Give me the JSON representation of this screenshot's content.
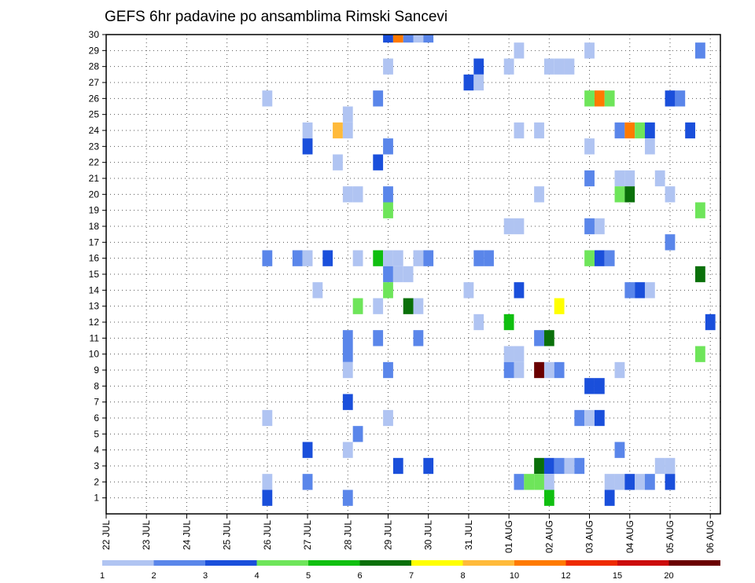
{
  "chart_data": {
    "type": "heatmap",
    "title": "GEFS 6hr padavine po ansamblima Rimski Sancevi",
    "y_ticks": [
      "1",
      "2",
      "3",
      "4",
      "5",
      "6",
      "7",
      "8",
      "9",
      "10",
      "11",
      "12",
      "13",
      "14",
      "15",
      "16",
      "17",
      "18",
      "19",
      "20",
      "21",
      "22",
      "23",
      "24",
      "25",
      "26",
      "27",
      "28",
      "29",
      "30"
    ],
    "x_ticks": [
      "22 JUL",
      "23 JUL",
      "24 JUL",
      "25 JUL",
      "26 JUL",
      "27 JUL",
      "28 JUL",
      "29 JUL",
      "30 JUL",
      "31 JUL",
      "01 AUG",
      "02 AUG",
      "03 AUG",
      "04 AUG",
      "05 AUG",
      "06 AUG"
    ],
    "x_steps_per_tick": 4,
    "ylim": [
      0,
      30
    ],
    "grid": true,
    "legend_levels": [
      "1",
      "2",
      "3",
      "4",
      "5",
      "6",
      "7",
      "8",
      "10",
      "12",
      "15",
      "20"
    ],
    "legend_colors": [
      "#b0c4f2",
      "#5a86ea",
      "#1a4fdb",
      "#6ee55a",
      "#10bf10",
      "#0a700a",
      "#ffff00",
      "#ffba3a",
      "#ff7a00",
      "#ee2a00",
      "#cc0c0c",
      "#6a0000"
    ],
    "cells": [
      {
        "x": "29 JUL 00",
        "member": 30,
        "level": 3
      },
      {
        "x": "29 JUL 06",
        "member": 30,
        "level": 10
      },
      {
        "x": "29 JUL 12",
        "member": 30,
        "level": 2
      },
      {
        "x": "29 JUL 18",
        "member": 30,
        "level": 1
      },
      {
        "x": "30 JUL 00",
        "member": 30,
        "level": 2
      },
      {
        "x": "01 AUG 06",
        "member": 29,
        "level": 1
      },
      {
        "x": "03 AUG 00",
        "member": 29,
        "level": 1
      },
      {
        "x": "05 AUG 18",
        "member": 29,
        "level": 2
      },
      {
        "x": "29 JUL 00",
        "member": 28,
        "level": 1
      },
      {
        "x": "31 JUL 06",
        "member": 28,
        "level": 3
      },
      {
        "x": "01 AUG 00",
        "member": 28,
        "level": 1
      },
      {
        "x": "02 AUG 00",
        "member": 28,
        "level": 1
      },
      {
        "x": "02 AUG 06",
        "member": 28,
        "level": 1
      },
      {
        "x": "02 AUG 12",
        "member": 28,
        "level": 1
      },
      {
        "x": "31 JUL 00",
        "member": 27,
        "level": 3
      },
      {
        "x": "31 JUL 06",
        "member": 27,
        "level": 1
      },
      {
        "x": "26 JUL 00",
        "member": 26,
        "level": 1
      },
      {
        "x": "28 JUL 18",
        "member": 26,
        "level": 2
      },
      {
        "x": "03 AUG 00",
        "member": 26,
        "level": 4
      },
      {
        "x": "03 AUG 06",
        "member": 26,
        "level": 10
      },
      {
        "x": "03 AUG 12",
        "member": 26,
        "level": 4
      },
      {
        "x": "05 AUG 00",
        "member": 26,
        "level": 3
      },
      {
        "x": "05 AUG 06",
        "member": 26,
        "level": 2
      },
      {
        "x": "28 JUL 00",
        "member": 25,
        "level": 1
      },
      {
        "x": "27 JUL 00",
        "member": 24,
        "level": 1
      },
      {
        "x": "27 JUL 18",
        "member": 24,
        "level": 8
      },
      {
        "x": "28 JUL 00",
        "member": 24,
        "level": 1
      },
      {
        "x": "01 AUG 06",
        "member": 24,
        "level": 1
      },
      {
        "x": "01 AUG 18",
        "member": 24,
        "level": 1
      },
      {
        "x": "03 AUG 18",
        "member": 24,
        "level": 2
      },
      {
        "x": "04 AUG 00",
        "member": 24,
        "level": 10
      },
      {
        "x": "04 AUG 06",
        "member": 24,
        "level": 4
      },
      {
        "x": "04 AUG 12",
        "member": 24,
        "level": 3
      },
      {
        "x": "05 AUG 12",
        "member": 24,
        "level": 3
      },
      {
        "x": "27 JUL 00",
        "member": 23,
        "level": 3
      },
      {
        "x": "29 JUL 00",
        "member": 23,
        "level": 2
      },
      {
        "x": "03 AUG 00",
        "member": 23,
        "level": 1
      },
      {
        "x": "04 AUG 12",
        "member": 23,
        "level": 1
      },
      {
        "x": "27 JUL 18",
        "member": 22,
        "level": 1
      },
      {
        "x": "28 JUL 18",
        "member": 22,
        "level": 3
      },
      {
        "x": "03 AUG 00",
        "member": 21,
        "level": 2
      },
      {
        "x": "03 AUG 18",
        "member": 21,
        "level": 1
      },
      {
        "x": "04 AUG 00",
        "member": 21,
        "level": 1
      },
      {
        "x": "04 AUG 18",
        "member": 21,
        "level": 1
      },
      {
        "x": "28 JUL 00",
        "member": 20,
        "level": 1
      },
      {
        "x": "28 JUL 06",
        "member": 20,
        "level": 1
      },
      {
        "x": "29 JUL 00",
        "member": 20,
        "level": 2
      },
      {
        "x": "01 AUG 18",
        "member": 20,
        "level": 1
      },
      {
        "x": "03 AUG 18",
        "member": 20,
        "level": 4
      },
      {
        "x": "04 AUG 00",
        "member": 20,
        "level": 6
      },
      {
        "x": "05 AUG 00",
        "member": 20,
        "level": 1
      },
      {
        "x": "29 JUL 00",
        "member": 19,
        "level": 4
      },
      {
        "x": "05 AUG 18",
        "member": 19,
        "level": 4
      },
      {
        "x": "01 AUG 00",
        "member": 18,
        "level": 1
      },
      {
        "x": "01 AUG 06",
        "member": 18,
        "level": 1
      },
      {
        "x": "03 AUG 00",
        "member": 18,
        "level": 2
      },
      {
        "x": "03 AUG 06",
        "member": 18,
        "level": 1
      },
      {
        "x": "05 AUG 00",
        "member": 17,
        "level": 2
      },
      {
        "x": "26 JUL 00",
        "member": 16,
        "level": 2
      },
      {
        "x": "26 JUL 18",
        "member": 16,
        "level": 2
      },
      {
        "x": "27 JUL 00",
        "member": 16,
        "level": 1
      },
      {
        "x": "27 JUL 12",
        "member": 16,
        "level": 3
      },
      {
        "x": "28 JUL 06",
        "member": 16,
        "level": 1
      },
      {
        "x": "28 JUL 18",
        "member": 16,
        "level": 5
      },
      {
        "x": "29 JUL 00",
        "member": 16,
        "level": 1
      },
      {
        "x": "29 JUL 06",
        "member": 16,
        "level": 1
      },
      {
        "x": "29 JUL 18",
        "member": 16,
        "level": 1
      },
      {
        "x": "30 JUL 00",
        "member": 16,
        "level": 2
      },
      {
        "x": "31 JUL 06",
        "member": 16,
        "level": 2
      },
      {
        "x": "31 JUL 12",
        "member": 16,
        "level": 2
      },
      {
        "x": "03 AUG 00",
        "member": 16,
        "level": 4
      },
      {
        "x": "03 AUG 06",
        "member": 16,
        "level": 3
      },
      {
        "x": "03 AUG 12",
        "member": 16,
        "level": 2
      },
      {
        "x": "29 JUL 00",
        "member": 15,
        "level": 2
      },
      {
        "x": "29 JUL 06",
        "member": 15,
        "level": 1
      },
      {
        "x": "29 JUL 12",
        "member": 15,
        "level": 1
      },
      {
        "x": "05 AUG 18",
        "member": 15,
        "level": 6
      },
      {
        "x": "27 JUL 06",
        "member": 14,
        "level": 1
      },
      {
        "x": "29 JUL 00",
        "member": 14,
        "level": 4
      },
      {
        "x": "31 JUL 00",
        "member": 14,
        "level": 1
      },
      {
        "x": "01 AUG 06",
        "member": 14,
        "level": 3
      },
      {
        "x": "04 AUG 00",
        "member": 14,
        "level": 2
      },
      {
        "x": "04 AUG 06",
        "member": 14,
        "level": 3
      },
      {
        "x": "04 AUG 12",
        "member": 14,
        "level": 1
      },
      {
        "x": "28 JUL 06",
        "member": 13,
        "level": 4
      },
      {
        "x": "28 JUL 18",
        "member": 13,
        "level": 1
      },
      {
        "x": "29 JUL 12",
        "member": 13,
        "level": 6
      },
      {
        "x": "29 JUL 18",
        "member": 13,
        "level": 1
      },
      {
        "x": "02 AUG 06",
        "member": 13,
        "level": 7
      },
      {
        "x": "31 JUL 06",
        "member": 12,
        "level": 1
      },
      {
        "x": "01 AUG 00",
        "member": 12,
        "level": 5
      },
      {
        "x": "06 AUG 00",
        "member": 12,
        "level": 3
      },
      {
        "x": "28 JUL 00",
        "member": 11,
        "level": 2
      },
      {
        "x": "28 JUL 18",
        "member": 11,
        "level": 2
      },
      {
        "x": "29 JUL 18",
        "member": 11,
        "level": 2
      },
      {
        "x": "01 AUG 18",
        "member": 11,
        "level": 2
      },
      {
        "x": "02 AUG 00",
        "member": 11,
        "level": 6
      },
      {
        "x": "28 JUL 00",
        "member": 10,
        "level": 2
      },
      {
        "x": "01 AUG 00",
        "member": 10,
        "level": 1
      },
      {
        "x": "01 AUG 06",
        "member": 10,
        "level": 1
      },
      {
        "x": "05 AUG 18",
        "member": 10,
        "level": 4
      },
      {
        "x": "28 JUL 00",
        "member": 9,
        "level": 1
      },
      {
        "x": "29 JUL 00",
        "member": 9,
        "level": 2
      },
      {
        "x": "01 AUG 00",
        "member": 9,
        "level": 2
      },
      {
        "x": "01 AUG 06",
        "member": 9,
        "level": 1
      },
      {
        "x": "01 AUG 18",
        "member": 9,
        "level": 20
      },
      {
        "x": "02 AUG 00",
        "member": 9,
        "level": 1
      },
      {
        "x": "02 AUG 06",
        "member": 9,
        "level": 2
      },
      {
        "x": "03 AUG 18",
        "member": 9,
        "level": 1
      },
      {
        "x": "03 AUG 00",
        "member": 8,
        "level": 3
      },
      {
        "x": "03 AUG 06",
        "member": 8,
        "level": 3
      },
      {
        "x": "28 JUL 00",
        "member": 7,
        "level": 3
      },
      {
        "x": "26 JUL 00",
        "member": 6,
        "level": 1
      },
      {
        "x": "29 JUL 00",
        "member": 6,
        "level": 1
      },
      {
        "x": "02 AUG 18",
        "member": 6,
        "level": 2
      },
      {
        "x": "03 AUG 00",
        "member": 6,
        "level": 1
      },
      {
        "x": "03 AUG 06",
        "member": 6,
        "level": 3
      },
      {
        "x": "28 JUL 06",
        "member": 5,
        "level": 2
      },
      {
        "x": "27 JUL 00",
        "member": 4,
        "level": 3
      },
      {
        "x": "28 JUL 00",
        "member": 4,
        "level": 1
      },
      {
        "x": "03 AUG 18",
        "member": 4,
        "level": 2
      },
      {
        "x": "29 JUL 06",
        "member": 3,
        "level": 3
      },
      {
        "x": "30 JUL 00",
        "member": 3,
        "level": 3
      },
      {
        "x": "01 AUG 18",
        "member": 3,
        "level": 6
      },
      {
        "x": "02 AUG 00",
        "member": 3,
        "level": 3
      },
      {
        "x": "02 AUG 06",
        "member": 3,
        "level": 2
      },
      {
        "x": "02 AUG 12",
        "member": 3,
        "level": 1
      },
      {
        "x": "02 AUG 18",
        "member": 3,
        "level": 2
      },
      {
        "x": "04 AUG 18",
        "member": 3,
        "level": 1
      },
      {
        "x": "05 AUG 00",
        "member": 3,
        "level": 1
      },
      {
        "x": "26 JUL 00",
        "member": 2,
        "level": 1
      },
      {
        "x": "27 JUL 00",
        "member": 2,
        "level": 2
      },
      {
        "x": "01 AUG 06",
        "member": 2,
        "level": 2
      },
      {
        "x": "01 AUG 12",
        "member": 2,
        "level": 4
      },
      {
        "x": "01 AUG 18",
        "member": 2,
        "level": 4
      },
      {
        "x": "02 AUG 00",
        "member": 2,
        "level": 1
      },
      {
        "x": "03 AUG 12",
        "member": 2,
        "level": 1
      },
      {
        "x": "03 AUG 18",
        "member": 2,
        "level": 1
      },
      {
        "x": "04 AUG 00",
        "member": 2,
        "level": 3
      },
      {
        "x": "04 AUG 06",
        "member": 2,
        "level": 1
      },
      {
        "x": "04 AUG 12",
        "member": 2,
        "level": 2
      },
      {
        "x": "05 AUG 00",
        "member": 2,
        "level": 3
      },
      {
        "x": "26 JUL 00",
        "member": 1,
        "level": 3
      },
      {
        "x": "28 JUL 00",
        "member": 1,
        "level": 2
      },
      {
        "x": "02 AUG 00",
        "member": 1,
        "level": 5
      },
      {
        "x": "03 AUG 12",
        "member": 1,
        "level": 3
      }
    ]
  }
}
